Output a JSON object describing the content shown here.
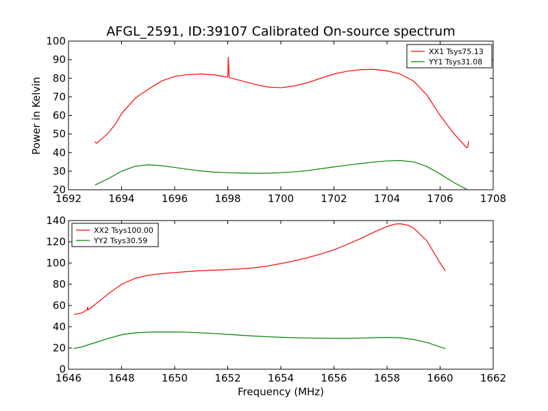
{
  "figure": {
    "title": "AFGL_2591, ID:39107 Calibrated On-source spectrum",
    "ylabel": "Power in Kelvin",
    "xlabel": "Frequency (MHz)"
  },
  "chart_data": [
    {
      "type": "line",
      "title": "AFGL_2591, ID:39107 Calibrated On-source spectrum",
      "xlabel": "",
      "ylabel": "Power in Kelvin",
      "xlim": [
        1692,
        1708
      ],
      "ylim": [
        20,
        100
      ],
      "xticks": [
        1692,
        1694,
        1696,
        1698,
        1700,
        1702,
        1704,
        1706,
        1708
      ],
      "yticks": [
        20,
        30,
        40,
        50,
        60,
        70,
        80,
        90,
        100
      ],
      "grid": false,
      "legend_position": "top-right",
      "series": [
        {
          "name": "XX1 Tsys75.13",
          "color": "#ff0000",
          "x": [
            1693.0,
            1693.05,
            1693.1,
            1693.5,
            1693.8,
            1694.0,
            1694.5,
            1694.7,
            1695.0,
            1695.5,
            1696.0,
            1696.5,
            1697.0,
            1697.5,
            1697.95,
            1698.0,
            1698.02,
            1698.05,
            1698.06,
            1698.1,
            1698.5,
            1699.0,
            1699.5,
            1700.0,
            1700.5,
            1701.0,
            1701.5,
            1702.0,
            1702.5,
            1703.0,
            1703.5,
            1704.0,
            1704.5,
            1705.0,
            1705.5,
            1706.0,
            1706.5,
            1707.0,
            1707.05,
            1707.07
          ],
          "y": [
            46,
            45,
            45.5,
            50.5,
            56,
            61,
            69,
            71.2,
            74,
            78.5,
            81,
            82,
            82.3,
            81.8,
            80.7,
            80.7,
            91.5,
            80.8,
            80.4,
            80.2,
            78.7,
            76.8,
            75.3,
            74.9,
            75.8,
            77.6,
            80,
            82.3,
            83.8,
            84.6,
            84.8,
            84,
            82.3,
            78.5,
            71,
            60,
            50.5,
            42.6,
            43.3,
            46.2
          ]
        },
        {
          "name": "YY1 Tsys31.08",
          "color": "#008000",
          "x": [
            1693.0,
            1693.5,
            1694.0,
            1694.5,
            1695.0,
            1695.5,
            1696.0,
            1696.5,
            1697.0,
            1697.5,
            1698.0,
            1698.5,
            1699.0,
            1699.5,
            1700.0,
            1700.5,
            1701.0,
            1701.5,
            1702.0,
            1702.5,
            1703.0,
            1703.5,
            1704.0,
            1704.5,
            1705.0,
            1705.5,
            1706.0,
            1706.5,
            1707.0
          ],
          "y": [
            22.5,
            26,
            30,
            32.6,
            33.4,
            33,
            32,
            31,
            30.1,
            29.5,
            29.2,
            29,
            28.9,
            28.9,
            29.2,
            29.6,
            30.3,
            31.3,
            32.3,
            33.2,
            34.1,
            34.9,
            35.5,
            35.7,
            35,
            32.5,
            28.5,
            24,
            20.2
          ]
        }
      ]
    },
    {
      "type": "line",
      "title": "",
      "xlabel": "Frequency (MHz)",
      "ylabel": "",
      "xlim": [
        1646,
        1662
      ],
      "ylim": [
        0,
        140
      ],
      "xticks": [
        1646,
        1648,
        1650,
        1652,
        1654,
        1656,
        1658,
        1660,
        1662
      ],
      "yticks": [
        0,
        20,
        40,
        60,
        80,
        100,
        120,
        140
      ],
      "grid": false,
      "legend_position": "top-left",
      "series": [
        {
          "name": "XX2 Tsys100.00",
          "color": "#ff0000",
          "x": [
            1646.2,
            1646.5,
            1646.6,
            1646.7,
            1646.72,
            1646.74,
            1646.8,
            1647.0,
            1647.5,
            1648.0,
            1648.5,
            1649.0,
            1649.5,
            1650.0,
            1650.5,
            1651.0,
            1651.5,
            1652.0,
            1652.5,
            1653.0,
            1653.5,
            1654.0,
            1654.5,
            1655.0,
            1655.5,
            1656.0,
            1656.5,
            1657.0,
            1657.5,
            1658.0,
            1658.3,
            1658.5,
            1658.8,
            1659.0,
            1659.5,
            1660.0,
            1660.2
          ],
          "y": [
            51.5,
            53,
            54.5,
            56,
            58.8,
            56,
            57,
            61,
            71,
            80,
            85.5,
            88.5,
            90,
            91,
            92,
            92.8,
            93.3,
            93.8,
            94.5,
            95.5,
            97.2,
            99.5,
            102,
            105,
            108.5,
            112.5,
            117.5,
            123,
            129,
            134.5,
            136.7,
            137,
            135.5,
            133,
            121,
            100,
            92.5
          ]
        },
        {
          "name": "YY2 Tsys30.59",
          "color": "#008000",
          "x": [
            1646.2,
            1646.5,
            1647.0,
            1647.5,
            1648.0,
            1648.5,
            1649.0,
            1649.5,
            1650.0,
            1650.5,
            1651.0,
            1651.5,
            1652.0,
            1652.5,
            1653.0,
            1653.5,
            1654.0,
            1654.5,
            1655.0,
            1655.5,
            1656.0,
            1656.5,
            1657.0,
            1657.5,
            1658.0,
            1658.5,
            1659.0,
            1659.5,
            1660.0,
            1660.2
          ],
          "y": [
            19.5,
            21,
            25,
            29,
            32.5,
            34.2,
            34.9,
            35.1,
            35.1,
            34.8,
            34.3,
            33.6,
            32.8,
            32,
            31.2,
            30.6,
            30.1,
            29.7,
            29.4,
            29.2,
            29.1,
            29.1,
            29.3,
            29.7,
            29.9,
            29.6,
            28,
            25.2,
            21,
            19.5
          ]
        }
      ]
    }
  ]
}
